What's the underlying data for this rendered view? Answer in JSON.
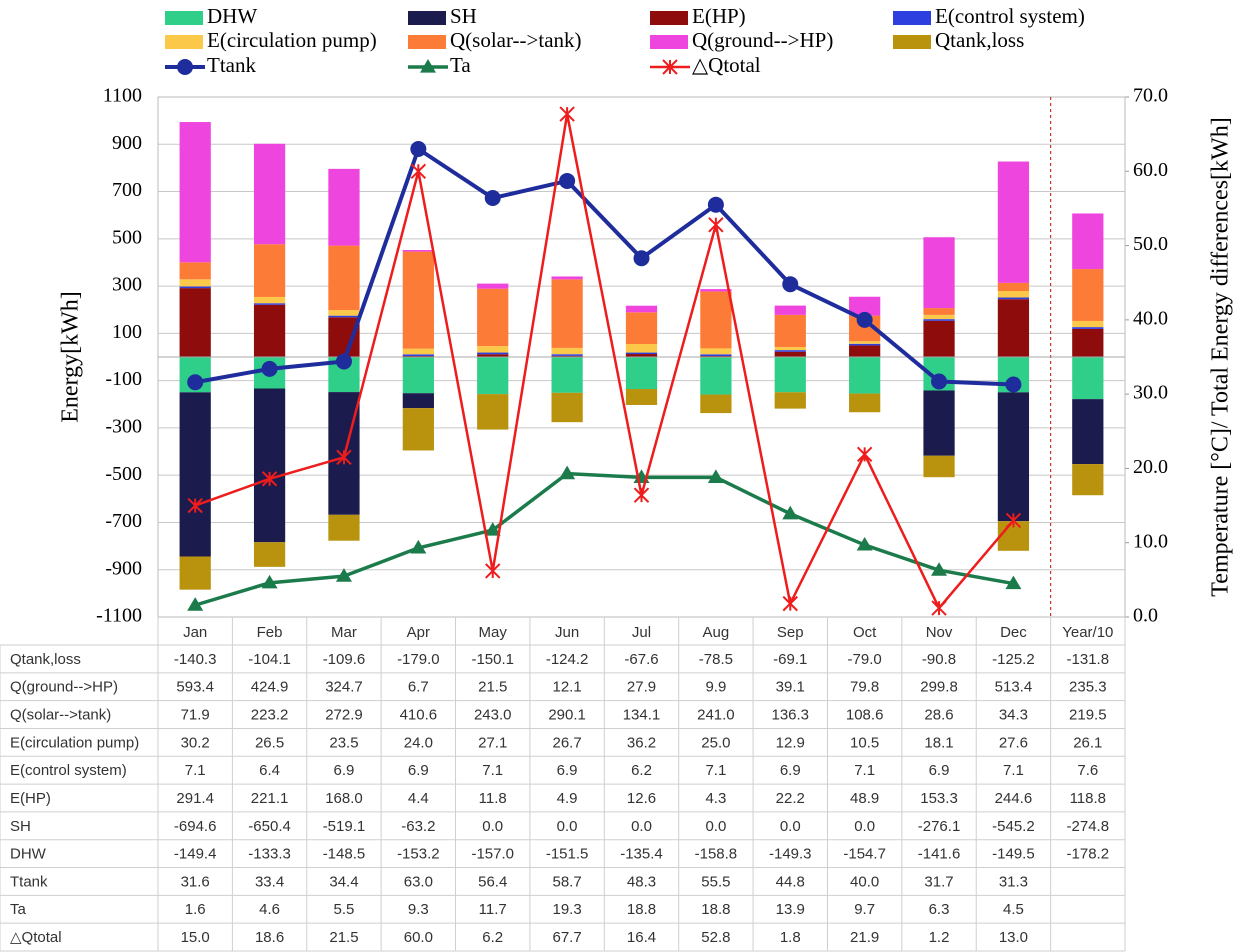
{
  "chart_data": {
    "type": "combo",
    "y_label": "Energy[kWh]",
    "y2_label": "Temperature  [°C]/ Total Energy differences[kWh]",
    "categories": [
      "Jan",
      "Feb",
      "Mar",
      "Apr",
      "May",
      "Jun",
      "Jul",
      "Aug",
      "Sep",
      "Oct",
      "Nov",
      "Dec",
      "Year/10"
    ],
    "ylim": [
      -1100,
      1100
    ],
    "yticks": [
      -1100,
      -900,
      -700,
      -500,
      -300,
      -100,
      100,
      300,
      500,
      700,
      900,
      1100
    ],
    "y2lim": [
      0,
      70
    ],
    "y2ticks": [
      {
        "value": 0,
        "label": "0.0"
      },
      {
        "value": 10,
        "label": "10.0"
      },
      {
        "value": 20,
        "label": "20.0"
      },
      {
        "value": 30,
        "label": "30.0"
      },
      {
        "value": 40,
        "label": "40.0"
      },
      {
        "value": 50,
        "label": "50.0"
      },
      {
        "value": 60,
        "label": "60.0"
      },
      {
        "value": 70,
        "label": "70.0"
      }
    ],
    "grid": true,
    "legend": "top",
    "series": [
      {
        "name": "DHW",
        "type": "bar",
        "color": "#2fcf8a",
        "values": [
          -149.4,
          -133.3,
          -148.5,
          -153.2,
          -157.0,
          -151.5,
          -135.4,
          -158.8,
          -149.3,
          -154.7,
          -141.6,
          -149.5,
          -178.2
        ],
        "value_labels": [
          "-149.4",
          "-133.3",
          "-148.5",
          "-153.2",
          "-157.0",
          "-151.5",
          "-135.4",
          "-158.8",
          "-149.3",
          "-154.7",
          "-141.6",
          "-149.5",
          "-178.2"
        ]
      },
      {
        "name": "SH",
        "type": "bar",
        "color": "#1c1b4d",
        "values": [
          -694.6,
          -650.4,
          -519.1,
          -63.2,
          0,
          0,
          0,
          0,
          0,
          0,
          -276.1,
          -545.2,
          -274.8
        ],
        "value_labels": [
          "-694.6",
          "-650.4",
          "-519.1",
          "-63.2",
          "0.0",
          "0.0",
          "0.0",
          "0.0",
          "0.0",
          "0.0",
          "-276.1",
          "-545.2",
          "-274.8"
        ]
      },
      {
        "name": "E(HP)",
        "type": "bar",
        "color": "#8e0c0c",
        "values": [
          291.4,
          221.1,
          168.0,
          4.4,
          11.8,
          4.9,
          12.6,
          4.3,
          22.2,
          48.9,
          153.3,
          244.6,
          118.8
        ],
        "value_labels": [
          "291.4",
          "221.1",
          "168.0",
          "4.4",
          "11.8",
          "4.9",
          "12.6",
          "4.3",
          "22.2",
          "48.9",
          "153.3",
          "244.6",
          "118.8"
        ]
      },
      {
        "name": "E(control system)",
        "type": "bar",
        "color": "#2e3fe0",
        "values": [
          7.1,
          6.4,
          6.9,
          6.9,
          7.1,
          6.9,
          6.2,
          7.1,
          6.9,
          7.1,
          6.9,
          7.1,
          7.6
        ],
        "value_labels": [
          "7.1",
          "6.4",
          "6.9",
          "6.9",
          "7.1",
          "6.9",
          "6.2",
          "7.1",
          "6.9",
          "7.1",
          "6.9",
          "7.1",
          "7.6"
        ]
      },
      {
        "name": "E(circulation pump)",
        "type": "bar",
        "color": "#fcc84a",
        "values": [
          30.2,
          26.5,
          23.5,
          24.0,
          27.1,
          26.7,
          36.2,
          25.0,
          12.9,
          10.5,
          18.1,
          27.6,
          26.1
        ],
        "value_labels": [
          "30.2",
          "26.5",
          "23.5",
          "24.0",
          "27.1",
          "26.7",
          "36.2",
          "25.0",
          "12.9",
          "10.5",
          "18.1",
          "27.6",
          "26.1"
        ]
      },
      {
        "name": "Q(solar-->tank)",
        "type": "bar",
        "color": "#fc7b37",
        "values": [
          71.9,
          223.2,
          272.9,
          410.6,
          243.0,
          290.1,
          134.1,
          241.0,
          136.3,
          108.6,
          28.6,
          34.3,
          219.5
        ],
        "value_labels": [
          "71.9",
          "223.2",
          "272.9",
          "410.6",
          "243.0",
          "290.1",
          "134.1",
          "241.0",
          "136.3",
          "108.6",
          "28.6",
          "34.3",
          "219.5"
        ]
      },
      {
        "name": "Q(ground-->HP)",
        "type": "bar",
        "color": "#ee45de",
        "values": [
          593.4,
          424.9,
          324.7,
          6.7,
          21.5,
          12.1,
          27.9,
          9.9,
          39.1,
          79.8,
          299.8,
          513.4,
          235.3
        ],
        "value_labels": [
          "593.4",
          "424.9",
          "324.7",
          "6.7",
          "21.5",
          "12.1",
          "27.9",
          "9.9",
          "39.1",
          "79.8",
          "299.8",
          "513.4",
          "235.3"
        ]
      },
      {
        "name": "Qtank,loss",
        "type": "bar",
        "color": "#b9930e",
        "values": [
          -140.3,
          -104.1,
          -109.6,
          -179.0,
          -150.1,
          -124.2,
          -67.6,
          -78.5,
          -69.1,
          -79.0,
          -90.8,
          -125.2,
          -131.8
        ],
        "value_labels": [
          "-140.3",
          "-104.1",
          "-109.6",
          "-179.0",
          "-150.1",
          "-124.2",
          "-67.6",
          "-78.5",
          "-69.1",
          "-79.0",
          "-90.8",
          "-125.2",
          "-131.8"
        ]
      },
      {
        "name": "Ttank",
        "type": "line",
        "axis": "y2",
        "marker": "circle",
        "color": "#1f2d9c",
        "values": [
          31.6,
          33.4,
          34.4,
          63.0,
          56.4,
          58.7,
          48.3,
          55.5,
          44.8,
          40.0,
          31.7,
          31.3,
          null
        ],
        "value_labels": [
          "31.6",
          "33.4",
          "34.4",
          "63.0",
          "56.4",
          "58.7",
          "48.3",
          "55.5",
          "44.8",
          "40.0",
          "31.7",
          "31.3",
          null
        ]
      },
      {
        "name": "Ta",
        "type": "line",
        "axis": "y2",
        "marker": "triangle",
        "color": "#1b7b4b",
        "values": [
          1.6,
          4.6,
          5.5,
          9.3,
          11.7,
          19.3,
          18.8,
          18.8,
          13.9,
          9.7,
          6.3,
          4.5,
          null
        ],
        "value_labels": [
          "1.6",
          "4.6",
          "5.5",
          "9.3",
          "11.7",
          "19.3",
          "18.8",
          "18.8",
          "13.9",
          "9.7",
          "6.3",
          "4.5",
          null
        ]
      },
      {
        "name": "△Qtotal",
        "type": "line",
        "axis": "y2",
        "marker": "asterisk",
        "color": "#ee1c1c",
        "values": [
          15.0,
          18.6,
          21.5,
          60.0,
          6.2,
          67.7,
          16.4,
          52.8,
          1.8,
          21.9,
          1.2,
          13.0,
          null
        ],
        "value_labels": [
          "15.0",
          "18.6",
          "21.5",
          "60.0",
          "6.2",
          "67.7",
          "16.4",
          "52.8",
          "1.8",
          "21.9",
          "1.2",
          "13.0",
          null
        ]
      }
    ]
  }
}
